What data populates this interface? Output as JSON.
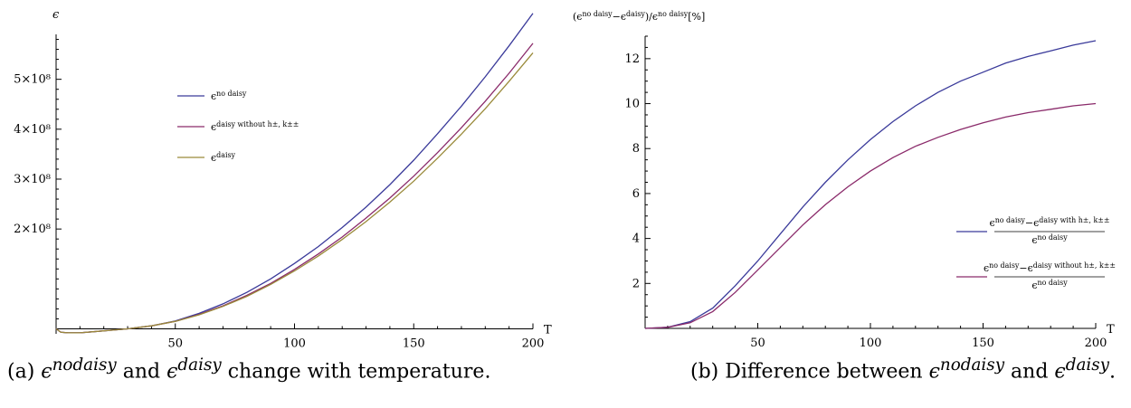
{
  "chart_data": [
    {
      "type": "line",
      "title": "",
      "xlabel": "T",
      "ylabel": "ϵ",
      "xlim": [
        0,
        200
      ],
      "ylim": [
        -10000000,
        590000000
      ],
      "x_ticks": [
        50,
        100,
        150,
        200
      ],
      "y_ticks": [
        200000000,
        300000000,
        400000000,
        500000000
      ],
      "y_tick_labels": [
        "2×10⁸",
        "3×10⁸",
        "4×10⁸",
        "5×10⁸"
      ],
      "legend_position": "upper-left",
      "grid": false,
      "x": [
        0,
        2,
        5,
        10,
        15,
        20,
        25,
        30,
        35,
        40,
        50,
        60,
        70,
        80,
        90,
        100,
        110,
        120,
        130,
        140,
        150,
        160,
        170,
        180,
        190,
        200
      ],
      "series": [
        {
          "name": "ϵ^no daisy",
          "legend_base": "ϵ",
          "legend_sup": "no daisy",
          "color": "#3a3a9a",
          "values": [
            0,
            -7000000,
            -8000000,
            -8000000,
            -6000000,
            -4000000,
            -2000000,
            0,
            3000000,
            6000000,
            16000000,
            31000000,
            50000000,
            73000000,
            100000000,
            131000000,
            165000000,
            203000000,
            244000000,
            289000000,
            338000000,
            391000000,
            446000000,
            505000000,
            567000000,
            632000000
          ]
        },
        {
          "name": "ϵ^daisy without h±, k±±",
          "legend_base": "ϵ",
          "legend_sup": "daisy without h±, k±±",
          "color": "#8a2a6a",
          "values": [
            0,
            -7000000,
            -8000000,
            -8000000,
            -6000000,
            -4000000,
            -2000000,
            0,
            3000000,
            6000000,
            15000000,
            29000000,
            46000000,
            67000000,
            91000000,
            119000000,
            150000000,
            184000000,
            222000000,
            262000000,
            306000000,
            353000000,
            403000000,
            456000000,
            512000000,
            572000000
          ]
        },
        {
          "name": "ϵ^daisy",
          "legend_base": "ϵ",
          "legend_sup": "daisy",
          "color": "#9a8a3a",
          "values": [
            0,
            -7000000,
            -8000000,
            -8000000,
            -6000000,
            -4000000,
            -2000000,
            0,
            3000000,
            6000000,
            15000000,
            28000000,
            45000000,
            65000000,
            89000000,
            116000000,
            146000000,
            179000000,
            215000000,
            254000000,
            296000000,
            342000000,
            390000000,
            441000000,
            496000000,
            553000000
          ]
        }
      ]
    },
    {
      "type": "line",
      "title": "",
      "xlabel": "T",
      "ylabel": "(ϵ^no daisy − ϵ^daisy)/ϵ^no daisy [%]",
      "ylabel_parts": {
        "open": "(ϵ",
        "sup1": "no daisy",
        "mid": "−ϵ",
        "sup2": "daisy",
        "slash": ")/ϵ",
        "sup3": "no daisy",
        "unit": "[%]"
      },
      "xlim": [
        0,
        200
      ],
      "ylim": [
        0,
        13
      ],
      "x_ticks": [
        50,
        100,
        150,
        200
      ],
      "y_ticks": [
        2,
        4,
        6,
        8,
        10,
        12
      ],
      "legend_position": "right",
      "grid": false,
      "x": [
        0,
        10,
        20,
        30,
        40,
        50,
        60,
        70,
        80,
        90,
        100,
        110,
        120,
        130,
        140,
        150,
        160,
        170,
        180,
        190,
        200
      ],
      "series": [
        {
          "name": "(ϵ^no daisy − ϵ^daisy with h±, k±±)/ϵ^no daisy",
          "legend_num_parts": [
            "ϵ",
            "no daisy",
            "−ϵ",
            "daisy with h±, k±±"
          ],
          "legend_den_parts": [
            "ϵ",
            "no daisy"
          ],
          "color": "#3a3a9a",
          "values": [
            0,
            0.05,
            0.3,
            0.9,
            1.9,
            3.0,
            4.2,
            5.4,
            6.5,
            7.5,
            8.4,
            9.2,
            9.9,
            10.5,
            11.0,
            11.4,
            11.8,
            12.1,
            12.35,
            12.6,
            12.8
          ]
        },
        {
          "name": "(ϵ^no daisy − ϵ^daisy without h±, k±±)/ϵ^no daisy",
          "legend_num_parts": [
            "ϵ",
            "no daisy",
            "−ϵ",
            "daisy without h±, k±±"
          ],
          "legend_den_parts": [
            "ϵ",
            "no daisy"
          ],
          "color": "#8a2a6a",
          "values": [
            0,
            0.05,
            0.25,
            0.75,
            1.6,
            2.6,
            3.6,
            4.6,
            5.5,
            6.3,
            7.0,
            7.6,
            8.1,
            8.5,
            8.85,
            9.15,
            9.4,
            9.6,
            9.75,
            9.9,
            10.0
          ]
        }
      ]
    }
  ],
  "captions": {
    "a": {
      "prefix": "(a) ",
      "sym1_base": "ϵ",
      "sym1_sup": "nodaisy",
      "mid": " and ",
      "sym2_base": "ϵ",
      "sym2_sup": "daisy",
      "suffix": " change with temperature."
    },
    "b": {
      "prefix": "(b) Difference between ",
      "sym1_base": "ϵ",
      "sym1_sup": "nodaisy",
      "mid": " and ",
      "sym2_base": "ϵ",
      "sym2_sup": "daisy",
      "suffix": "."
    }
  }
}
